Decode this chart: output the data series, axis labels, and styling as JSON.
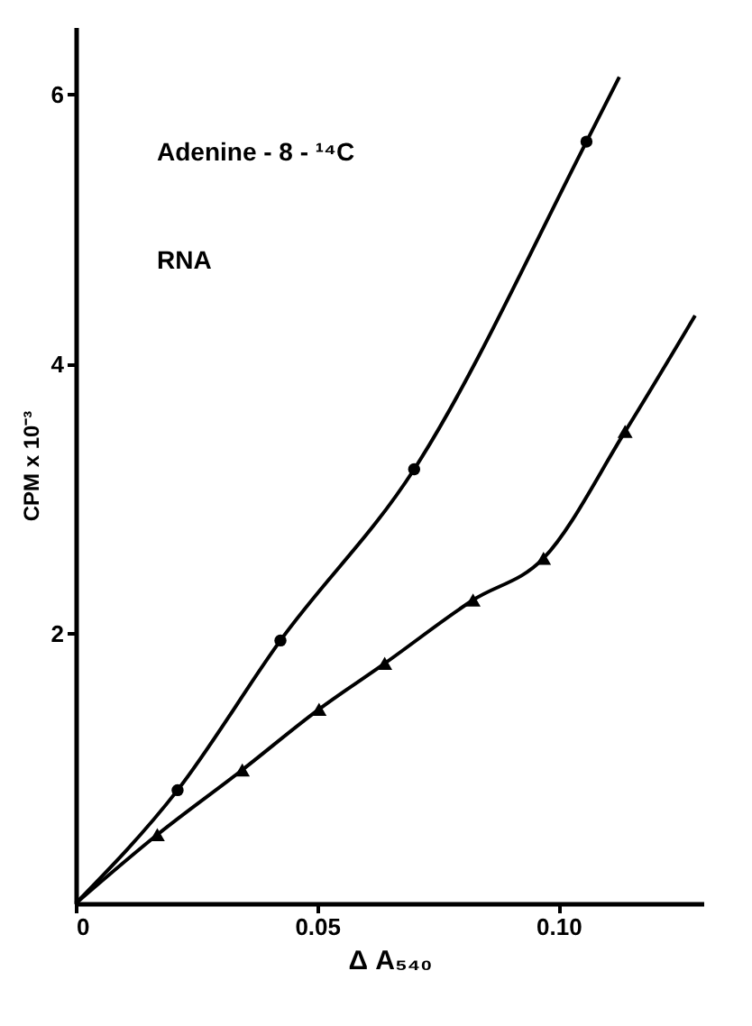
{
  "chart_data": {
    "type": "line",
    "xlabel": "Δ A₅₄₀",
    "ylabel": "CPM x 10⁻³",
    "annotations": [
      "Adenine - 8 - ¹⁴C",
      "RNA"
    ],
    "xlim": [
      0,
      0.13
    ],
    "ylim": [
      0,
      6.5
    ],
    "xticks": [
      0,
      0.05,
      {
        "value": 0.1,
        "label": "0.10"
      }
    ],
    "yticks": [
      2,
      4,
      6
    ],
    "grid": false,
    "series": [
      {
        "type": "line",
        "marker": "none",
        "color": "#000000",
        "x": [
          0,
          0.0211,
          0.0424,
          0.0701,
          0.1058,
          0.1126
        ],
        "values": [
          0,
          0.84,
          1.95,
          3.22,
          5.65,
          6.13
        ]
      },
      {
        "type": "line",
        "marker": "none",
        "color": "#000000",
        "x": [
          0,
          0.0169,
          0.0345,
          0.0504,
          0.064,
          0.0823,
          0.0969,
          0.1138,
          0.1283
        ],
        "values": [
          0,
          0.51,
          0.99,
          1.44,
          1.78,
          2.25,
          2.56,
          3.5,
          4.36
        ]
      },
      {
        "type": "scatter",
        "marker": "circle",
        "color": "#000000",
        "x": [
          0.0211,
          0.0424,
          0.0701,
          0.1058
        ],
        "values": [
          0.84,
          1.95,
          3.22,
          5.65
        ]
      },
      {
        "type": "scatter",
        "marker": "triangle",
        "color": "#000000",
        "x": [
          0.0169,
          0.0345,
          0.0504,
          0.064,
          0.0823,
          0.0969,
          0.1138
        ],
        "values": [
          0.51,
          0.99,
          1.44,
          1.78,
          2.25,
          2.56,
          3.5
        ]
      }
    ]
  }
}
